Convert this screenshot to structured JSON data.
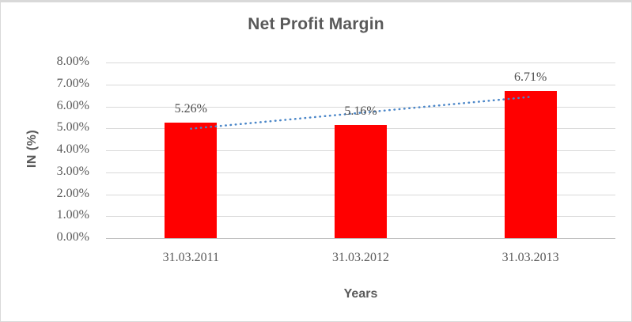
{
  "chart_data": {
    "type": "bar",
    "title": "Net Profit Margin",
    "xlabel": "Years",
    "ylabel": "IN (%)",
    "categories": [
      "31.03.2011",
      "31.03.2012",
      "31.03.2013"
    ],
    "series": [
      {
        "name": "Net Profit Margin",
        "values": [
          5.26,
          5.16,
          6.71
        ]
      }
    ],
    "data_labels": [
      "5.26%",
      "5.16%",
      "6.71%"
    ],
    "y_ticks": [
      "8.00%",
      "7.00%",
      "6.00%",
      "5.00%",
      "4.00%",
      "3.00%",
      "2.00%",
      "1.00%",
      "0.00%"
    ],
    "ylim": [
      0,
      8
    ],
    "y_tick_step": 1,
    "grid": true,
    "legend": "none",
    "bar_color": "#ff0000",
    "trendline": {
      "type": "linear",
      "style": "dotted",
      "color": "#4a86c8"
    }
  }
}
